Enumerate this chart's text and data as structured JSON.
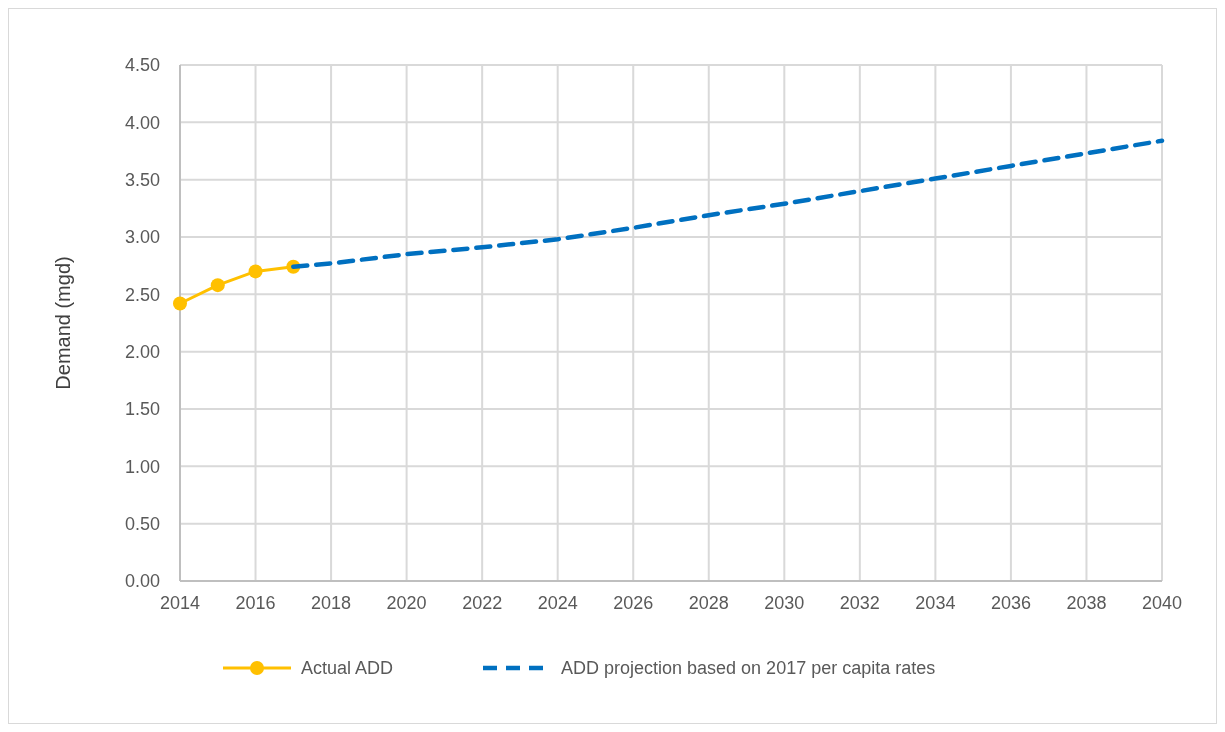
{
  "chart_data": {
    "type": "line",
    "ylabel": "Demand (mgd)",
    "xlim": [
      2014,
      2040
    ],
    "xticks": [
      2014,
      2016,
      2018,
      2020,
      2022,
      2024,
      2026,
      2028,
      2030,
      2032,
      2034,
      2036,
      2038,
      2040
    ],
    "ylim": [
      0,
      4.5
    ],
    "yticks": [
      {
        "value": 0,
        "label": "0.00"
      },
      {
        "value": 0.5,
        "label": "0.50"
      },
      {
        "value": 1,
        "label": "1.00"
      },
      {
        "value": 1.5,
        "label": "1.50"
      },
      {
        "value": 2,
        "label": "2.00"
      },
      {
        "value": 2.5,
        "label": "2.50"
      },
      {
        "value": 3,
        "label": "3.00"
      },
      {
        "value": 3.5,
        "label": "3.50"
      },
      {
        "value": 4,
        "label": "4.00"
      },
      {
        "value": 4.5,
        "label": "4.50"
      }
    ],
    "grid": true,
    "legend": "bottom",
    "series": [
      {
        "name": "Actual ADD",
        "color": "#ffc000",
        "x": [
          2014,
          2015,
          2016,
          2017
        ],
        "values": [
          2.42,
          2.58,
          2.7,
          2.74
        ],
        "marker": "circle",
        "line_style": "solid"
      },
      {
        "name": "ADD projection based on 2017 per capita rates",
        "color": "#0070c0",
        "x": [
          2017,
          2018,
          2020,
          2022,
          2024,
          2026,
          2028,
          2030,
          2032,
          2034,
          2036,
          2038,
          2040
        ],
        "values": [
          2.74,
          2.77,
          2.85,
          2.91,
          2.98,
          3.08,
          3.19,
          3.29,
          3.4,
          3.51,
          3.62,
          3.73,
          3.84
        ],
        "marker": "none",
        "line_style": "dashed"
      }
    ]
  }
}
